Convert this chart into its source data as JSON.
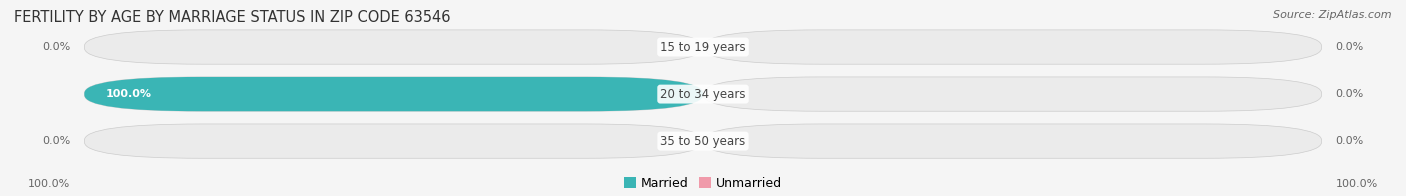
{
  "title": "FERTILITY BY AGE BY MARRIAGE STATUS IN ZIP CODE 63546",
  "source": "Source: ZipAtlas.com",
  "categories": [
    "15 to 19 years",
    "20 to 34 years",
    "35 to 50 years"
  ],
  "married_values": [
    0.0,
    100.0,
    0.0
  ],
  "unmarried_values": [
    0.0,
    0.0,
    0.0
  ],
  "married_color": "#3ab5b5",
  "unmarried_color": "#f09aaa",
  "bar_bg_left_color": "#ebebeb",
  "bar_bg_right_color": "#ebebeb",
  "bar_height": 0.58,
  "figsize": [
    14.06,
    1.96
  ],
  "dpi": 100,
  "left_label_100": "100.0%",
  "right_label_100": "100.0%",
  "title_fontsize": 10.5,
  "source_fontsize": 8,
  "label_fontsize": 8,
  "category_fontsize": 8.5,
  "legend_fontsize": 9,
  "title_color": "#333333",
  "label_color": "#666666",
  "bg_color": "#f5f5f5",
  "bar_edge_color": "#cccccc",
  "center_label_color": "#444444",
  "married_label_color": "#ffffff",
  "rounding": 6
}
